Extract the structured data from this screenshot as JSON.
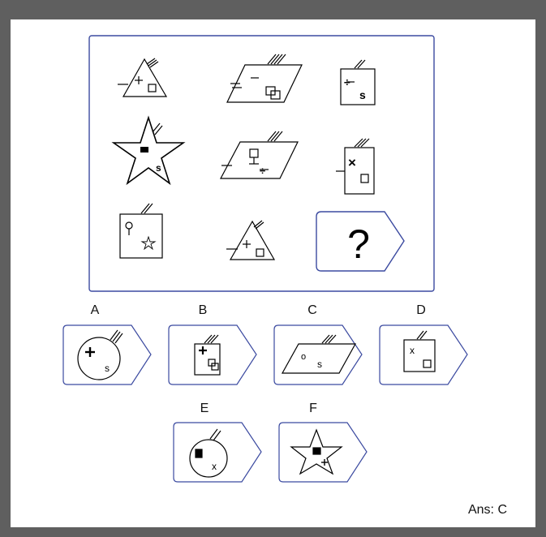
{
  "puzzle": {
    "question_mark": "?",
    "grid": [
      {
        "shape": "triangle-icon",
        "symbols": [
          "+",
          "square"
        ],
        "stripes": 3,
        "dash": 1
      },
      {
        "shape": "parallelogram-icon",
        "symbols": [
          "-",
          "two-squares"
        ],
        "stripes": 4,
        "dash": 2
      },
      {
        "shape": "rectangle-icon",
        "symbols": [
          "÷",
          "s"
        ],
        "stripes": 2,
        "dash": 0
      },
      {
        "shape": "star-icon",
        "symbols": [
          "filled-rect",
          "s"
        ],
        "stripes": 2,
        "dash": 0
      },
      {
        "shape": "parallelogram-icon",
        "symbols": [
          "stand-square",
          "÷"
        ],
        "stripes": 3,
        "dash": 1
      },
      {
        "shape": "rectangle-icon",
        "symbols": [
          "×",
          "square"
        ],
        "stripes": 3,
        "dash": 1
      },
      {
        "shape": "square-icon",
        "symbols": [
          "pin",
          "small-star"
        ],
        "stripes": 2,
        "dash": 0
      },
      {
        "shape": "triangle-icon",
        "symbols": [
          "+",
          "square"
        ],
        "stripes": 2,
        "dash": 1
      }
    ]
  },
  "options": [
    {
      "letter": "A",
      "shape": "circle-icon",
      "symbols": [
        "+",
        "s"
      ]
    },
    {
      "letter": "B",
      "shape": "rectangle-icon",
      "symbols": [
        "+",
        "two-squares"
      ]
    },
    {
      "letter": "C",
      "shape": "parallelogram-icon",
      "symbols": [
        "o",
        "s"
      ]
    },
    {
      "letter": "D",
      "shape": "square-icon",
      "symbols": [
        "x",
        "square"
      ]
    },
    {
      "letter": "E",
      "shape": "circle-icon",
      "symbols": [
        "filled-rect",
        "x"
      ]
    },
    {
      "letter": "F",
      "shape": "star-icon",
      "symbols": [
        "filled-rect",
        "+"
      ]
    }
  ],
  "answer": "Ans: C",
  "colors": {
    "frame": "#3b4aa0",
    "ink": "#000000",
    "backdrop": "#5f5f5f",
    "paper": "#ffffff"
  }
}
